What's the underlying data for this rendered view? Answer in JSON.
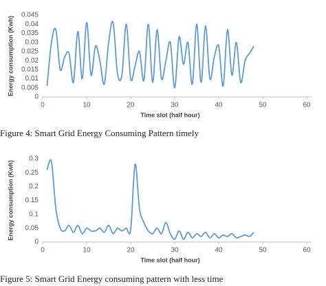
{
  "chart_data": [
    {
      "type": "line",
      "x_label": "Time slot (half hour)",
      "y_label": "Energy consumption (Kwh)",
      "caption": "Figure 4: Smart Grid Energy Consuming Pattern timely",
      "x": [
        1,
        2,
        3,
        4,
        5,
        6,
        7,
        8,
        9,
        10,
        11,
        12,
        13,
        14,
        15,
        16,
        17,
        18,
        19,
        20,
        21,
        22,
        23,
        24,
        25,
        26,
        27,
        28,
        29,
        30,
        31,
        32,
        33,
        34,
        35,
        36,
        37,
        38,
        39,
        40,
        41,
        42,
        43,
        44,
        45,
        46,
        47,
        48
      ],
      "series": [
        {
          "color": "#5b9bd5",
          "values": [
            0.006,
            0.03,
            0.037,
            0.015,
            0.022,
            0.024,
            0.008,
            0.036,
            0.01,
            0.041,
            0.012,
            0.028,
            0.02,
            0.007,
            0.03,
            0.041,
            0.013,
            0.012,
            0.04,
            0.01,
            0.017,
            0.025,
            0.009,
            0.04,
            0.008,
            0.037,
            0.01,
            0.02,
            0.03,
            0.005,
            0.033,
            0.018,
            0.03,
            0.007,
            0.04,
            0.008,
            0.039,
            0.01,
            0.022,
            0.028,
            0.006,
            0.037,
            0.012,
            0.03,
            0.008,
            0.02,
            0.024,
            0.028
          ]
        }
      ],
      "xlim": [
        0,
        60
      ],
      "xticks": [
        0,
        10,
        20,
        30,
        40,
        50,
        60
      ],
      "ylim": [
        0,
        0.045
      ],
      "yticks": [
        0,
        0.005,
        0.01,
        0.015,
        0.02,
        0.025,
        0.03,
        0.035,
        0.04,
        0.045
      ]
    },
    {
      "type": "line",
      "x_label": "Time slot (half hour)",
      "y_label": "Energy consumption (Kwh)",
      "caption": "Figure 5: Smart Grid Energy consuming pattern with less time",
      "x": [
        1,
        2,
        3,
        4,
        5,
        6,
        7,
        8,
        9,
        10,
        11,
        12,
        13,
        14,
        15,
        16,
        17,
        18,
        19,
        20,
        21,
        22,
        23,
        24,
        25,
        26,
        27,
        28,
        29,
        30,
        31,
        32,
        33,
        34,
        35,
        36,
        37,
        38,
        39,
        40,
        41,
        42,
        43,
        44,
        45,
        46,
        47,
        48
      ],
      "series": [
        {
          "color": "#5b9bd5",
          "values": [
            0.26,
            0.29,
            0.12,
            0.05,
            0.04,
            0.06,
            0.035,
            0.06,
            0.03,
            0.05,
            0.04,
            0.04,
            0.05,
            0.035,
            0.06,
            0.03,
            0.05,
            0.04,
            0.05,
            0.045,
            0.28,
            0.12,
            0.07,
            0.04,
            0.03,
            0.05,
            0.03,
            0.07,
            0.03,
            0.01,
            0.04,
            0.01,
            0.035,
            0.015,
            0.03,
            0.02,
            0.035,
            0.015,
            0.03,
            0.015,
            0.025,
            0.02,
            0.03,
            0.015,
            0.02,
            0.025,
            0.02,
            0.035
          ]
        }
      ],
      "xlim": [
        0,
        60
      ],
      "xticks": [
        0,
        10,
        20,
        30,
        40,
        50,
        60
      ],
      "ylim": [
        0,
        0.3
      ],
      "yticks": [
        0,
        0.05,
        0.1,
        0.15,
        0.2,
        0.25,
        0.3
      ]
    }
  ]
}
